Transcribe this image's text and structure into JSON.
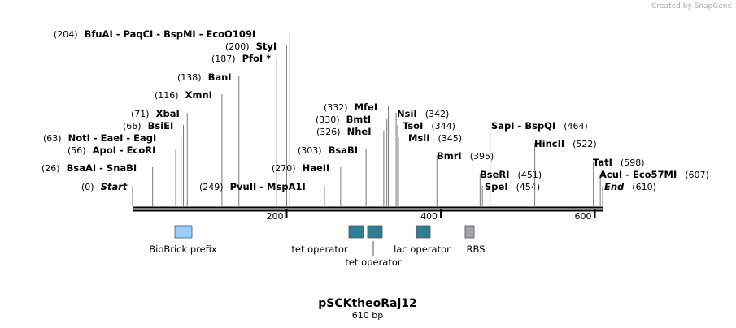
{
  "credit": "Created by SnapGene",
  "enzymes": [
    {
      "pos": "(204)",
      "names": "BfuAI  - PaqCI  - BspMI  - EcoO109I"
    },
    {
      "pos": "(200)",
      "names": "StyI"
    },
    {
      "pos": "(187)",
      "names": "PfoI *"
    },
    {
      "pos": "(138)",
      "names": "BanI"
    },
    {
      "pos": "(116)",
      "names": "XmnI"
    },
    {
      "pos": "(71)",
      "names": "XbaI"
    },
    {
      "pos": "(66)",
      "names": "BsiEI"
    },
    {
      "pos": "(63)",
      "names": "NotI  - EaeI  - EagI"
    },
    {
      "pos": "(56)",
      "names": "ApoI  - EcoRI"
    },
    {
      "pos": "(26)",
      "names": "BsaAI  - SnaBI"
    },
    {
      "pos": "(0)",
      "names": "Start"
    },
    {
      "pos": "(249)",
      "names": "PvuII  - MspA1I"
    },
    {
      "pos": "(270)",
      "names": "HaeII"
    },
    {
      "pos": "(303)",
      "names": "BsaBI"
    },
    {
      "pos": "(326)",
      "names": "NheI"
    },
    {
      "pos": "(330)",
      "names": "BmtI"
    },
    {
      "pos": "(332)",
      "names": "MfeI"
    },
    {
      "pos": "(342)",
      "names": "NsiI"
    },
    {
      "pos": "(344)",
      "names": "TsoI"
    },
    {
      "pos": "(345)",
      "names": "MslI"
    },
    {
      "pos": "(395)",
      "names": "BmrI"
    },
    {
      "pos": "(464)",
      "names": "SapI  - BspQI"
    },
    {
      "pos": "(451)",
      "names": "BseRI"
    },
    {
      "pos": "(454)",
      "names": "SpeI"
    },
    {
      "pos": "(522)",
      "names": "HincII"
    },
    {
      "pos": "(598)",
      "names": "TatI"
    },
    {
      "pos": "(607)",
      "names": "AcuI  - Eco57MI"
    },
    {
      "pos": "(610)",
      "names": "End"
    }
  ],
  "ruler": [
    200,
    400,
    600
  ],
  "features": [
    {
      "label": "BioBrick prefix"
    },
    {
      "label": "tet operator"
    },
    {
      "label": "tet operator"
    },
    {
      "label": "lac operator"
    },
    {
      "label": "RBS"
    }
  ],
  "title": "pSCKtheoRaj12",
  "size": "610 bp"
}
